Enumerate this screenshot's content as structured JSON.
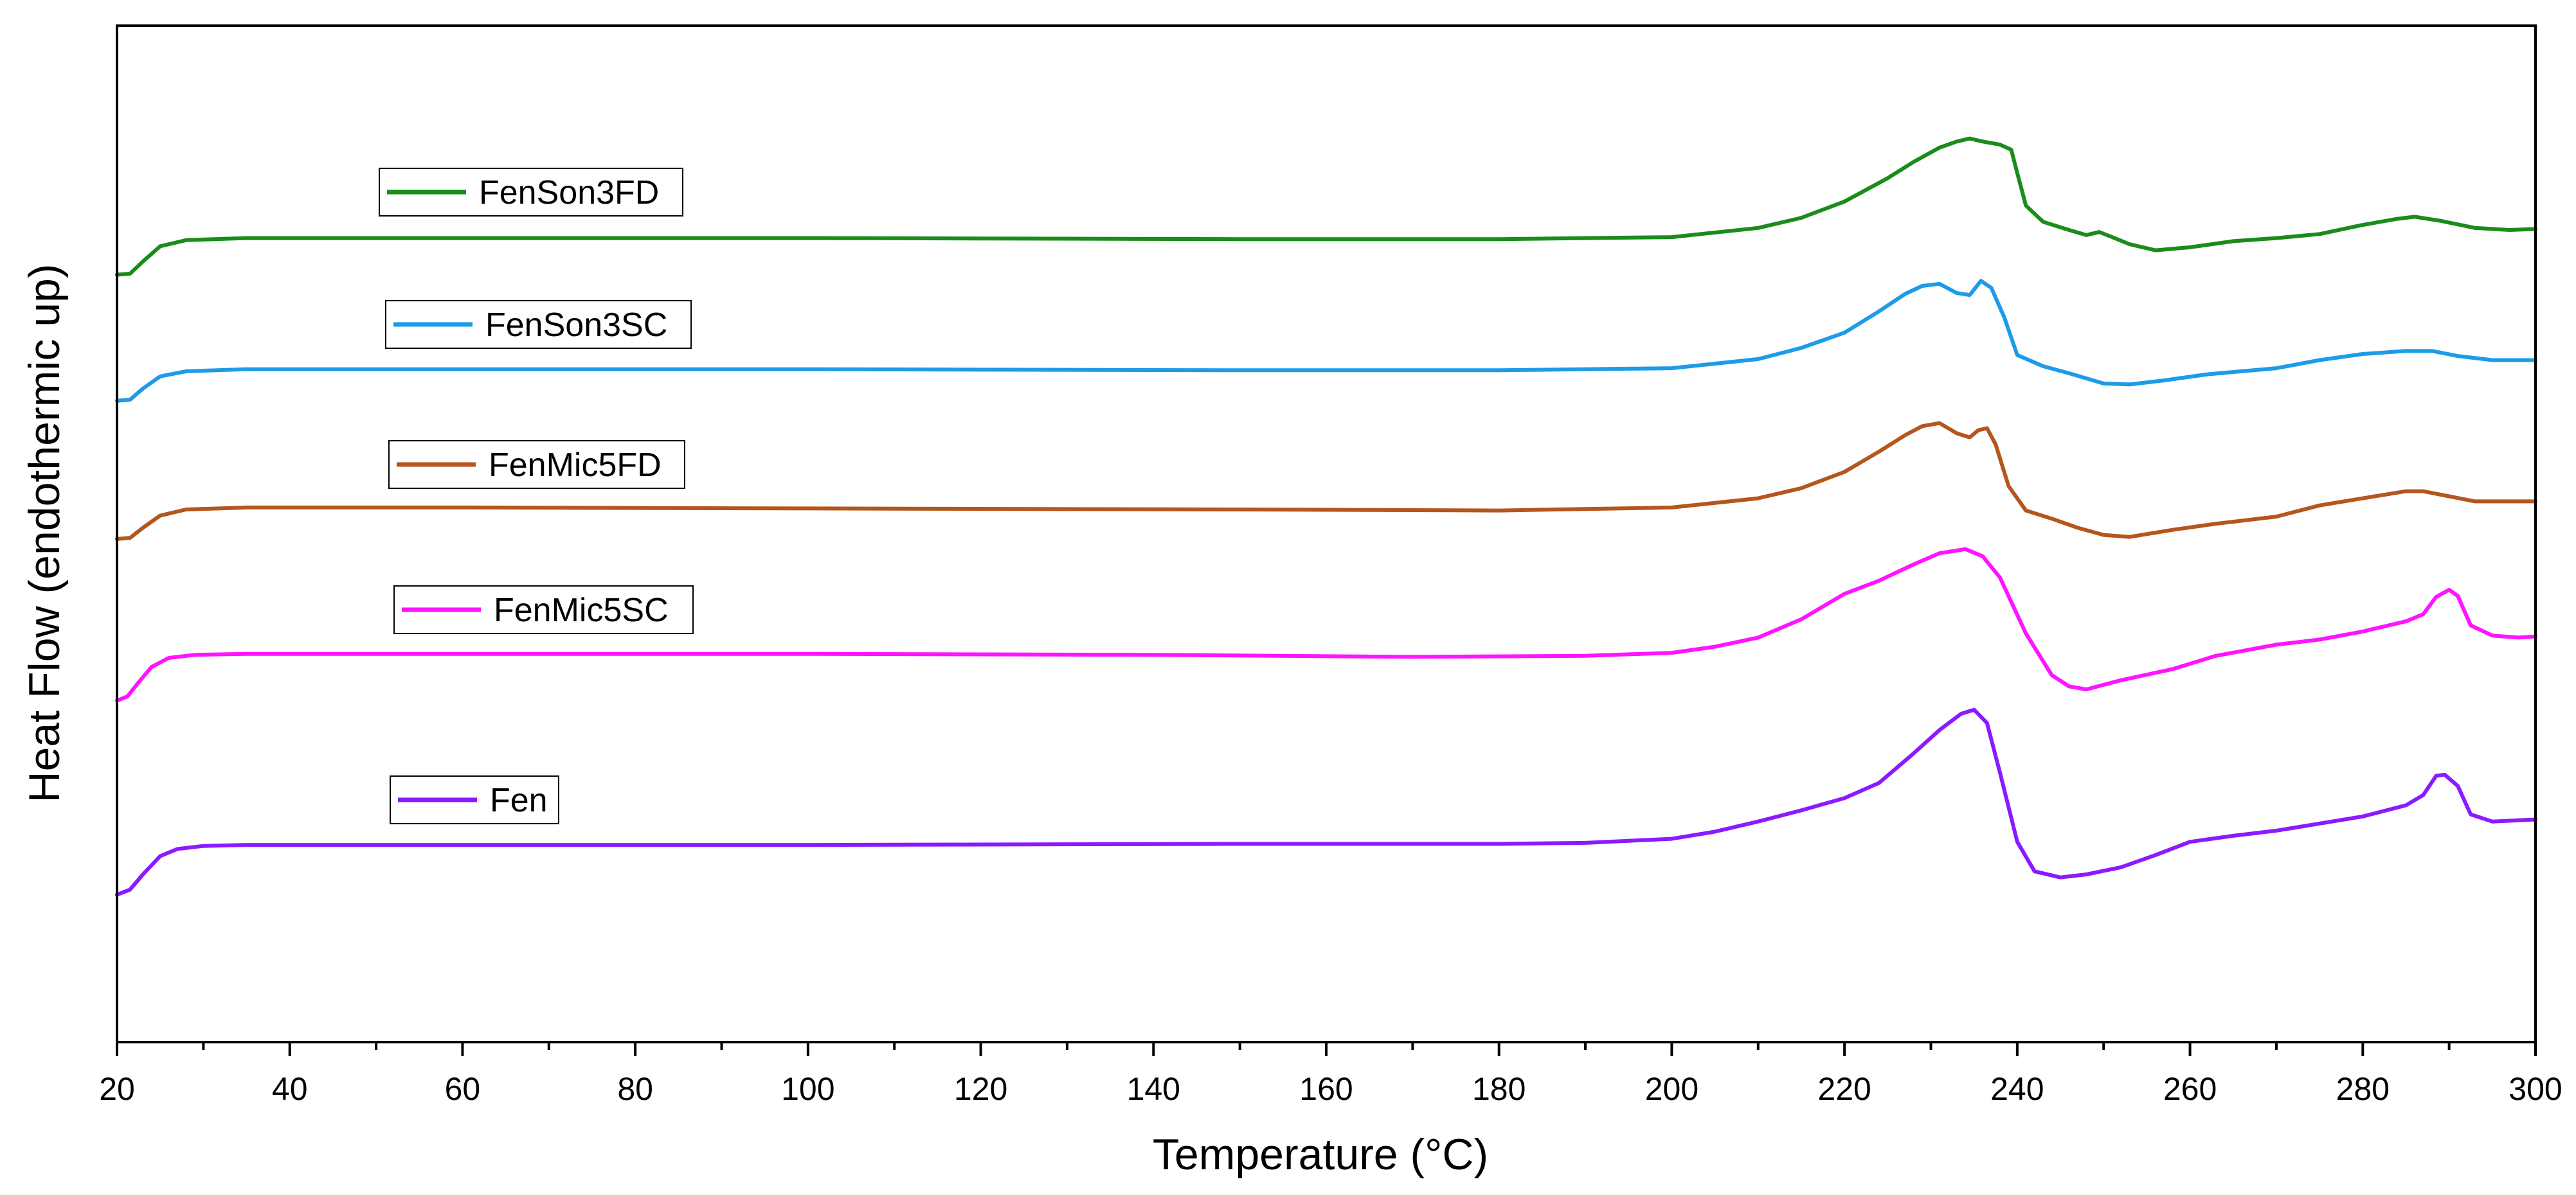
{
  "chart_data": {
    "type": "line",
    "title": "",
    "xlabel": "Temperature (°C)",
    "ylabel": "Heat Flow (endothermic up)",
    "xlim": [
      20,
      300
    ],
    "ylim": [
      0,
      1
    ],
    "x_ticks": [
      20,
      40,
      60,
      80,
      100,
      120,
      140,
      160,
      180,
      200,
      220,
      240,
      260,
      280,
      300
    ],
    "y_ticks_shown": false,
    "grid": false,
    "series": [
      {
        "name": "FenSon3FD",
        "color": "#1a8c1a",
        "points": [
          [
            20,
            0.755
          ],
          [
            21.5,
            0.756
          ],
          [
            23,
            0.768
          ],
          [
            25,
            0.783
          ],
          [
            28,
            0.789
          ],
          [
            35,
            0.791
          ],
          [
            60,
            0.791
          ],
          [
            100,
            0.791
          ],
          [
            150,
            0.79
          ],
          [
            180,
            0.79
          ],
          [
            200,
            0.792
          ],
          [
            210,
            0.801
          ],
          [
            215,
            0.811
          ],
          [
            220,
            0.827
          ],
          [
            225,
            0.85
          ],
          [
            228,
            0.866
          ],
          [
            231,
            0.88
          ],
          [
            233,
            0.886
          ],
          [
            234.5,
            0.889
          ],
          [
            236,
            0.886
          ],
          [
            238,
            0.883
          ],
          [
            239.3,
            0.878
          ],
          [
            240,
            0.855
          ],
          [
            241,
            0.823
          ],
          [
            243,
            0.807
          ],
          [
            246,
            0.799
          ],
          [
            248,
            0.794
          ],
          [
            249.5,
            0.797
          ],
          [
            251,
            0.792
          ],
          [
            253,
            0.785
          ],
          [
            256,
            0.779
          ],
          [
            260,
            0.782
          ],
          [
            265,
            0.788
          ],
          [
            270,
            0.791
          ],
          [
            275,
            0.795
          ],
          [
            280,
            0.804
          ],
          [
            284,
            0.81
          ],
          [
            286,
            0.812
          ],
          [
            289,
            0.808
          ],
          [
            293,
            0.801
          ],
          [
            297,
            0.799
          ],
          [
            300,
            0.8
          ]
        ]
      },
      {
        "name": "FenSon3SC",
        "color": "#1e9be8",
        "points": [
          [
            20,
            0.631
          ],
          [
            21.5,
            0.632
          ],
          [
            23,
            0.643
          ],
          [
            25,
            0.655
          ],
          [
            28,
            0.66
          ],
          [
            35,
            0.662
          ],
          [
            60,
            0.662
          ],
          [
            100,
            0.662
          ],
          [
            150,
            0.661
          ],
          [
            180,
            0.661
          ],
          [
            200,
            0.663
          ],
          [
            210,
            0.672
          ],
          [
            215,
            0.683
          ],
          [
            220,
            0.698
          ],
          [
            224,
            0.719
          ],
          [
            227,
            0.736
          ],
          [
            229,
            0.744
          ],
          [
            231,
            0.746
          ],
          [
            233,
            0.737
          ],
          [
            234.5,
            0.735
          ],
          [
            235.8,
            0.749
          ],
          [
            237,
            0.742
          ],
          [
            238.5,
            0.713
          ],
          [
            240,
            0.676
          ],
          [
            243,
            0.665
          ],
          [
            246,
            0.658
          ],
          [
            250,
            0.648
          ],
          [
            253,
            0.647
          ],
          [
            257,
            0.651
          ],
          [
            262,
            0.657
          ],
          [
            270,
            0.663
          ],
          [
            275,
            0.671
          ],
          [
            280,
            0.677
          ],
          [
            285,
            0.68
          ],
          [
            288,
            0.68
          ],
          [
            291,
            0.675
          ],
          [
            295,
            0.671
          ],
          [
            300,
            0.671
          ]
        ]
      },
      {
        "name": "FenMic5FD",
        "color": "#b4561e",
        "points": [
          [
            20,
            0.495
          ],
          [
            21.5,
            0.496
          ],
          [
            23,
            0.506
          ],
          [
            25,
            0.518
          ],
          [
            28,
            0.524
          ],
          [
            35,
            0.526
          ],
          [
            60,
            0.526
          ],
          [
            100,
            0.525
          ],
          [
            150,
            0.524
          ],
          [
            180,
            0.523
          ],
          [
            200,
            0.526
          ],
          [
            210,
            0.535
          ],
          [
            215,
            0.545
          ],
          [
            220,
            0.561
          ],
          [
            224,
            0.581
          ],
          [
            227,
            0.597
          ],
          [
            229,
            0.606
          ],
          [
            231,
            0.609
          ],
          [
            233,
            0.599
          ],
          [
            234.5,
            0.595
          ],
          [
            235.5,
            0.602
          ],
          [
            236.5,
            0.604
          ],
          [
            237.5,
            0.588
          ],
          [
            239,
            0.547
          ],
          [
            241,
            0.523
          ],
          [
            244,
            0.515
          ],
          [
            247,
            0.506
          ],
          [
            250,
            0.499
          ],
          [
            253,
            0.497
          ],
          [
            258,
            0.504
          ],
          [
            263,
            0.51
          ],
          [
            270,
            0.517
          ],
          [
            275,
            0.528
          ],
          [
            280,
            0.535
          ],
          [
            285,
            0.542
          ],
          [
            287,
            0.542
          ],
          [
            290,
            0.537
          ],
          [
            293,
            0.532
          ],
          [
            297,
            0.532
          ],
          [
            300,
            0.532
          ]
        ]
      },
      {
        "name": "FenMic5SC",
        "color": "#ff14ff",
        "points": [
          [
            20,
            0.336
          ],
          [
            21.2,
            0.34
          ],
          [
            22.5,
            0.354
          ],
          [
            24,
            0.369
          ],
          [
            26,
            0.378
          ],
          [
            29,
            0.381
          ],
          [
            35,
            0.382
          ],
          [
            60,
            0.382
          ],
          [
            100,
            0.382
          ],
          [
            140,
            0.381
          ],
          [
            170,
            0.379
          ],
          [
            190,
            0.38
          ],
          [
            200,
            0.383
          ],
          [
            205,
            0.389
          ],
          [
            210,
            0.398
          ],
          [
            215,
            0.416
          ],
          [
            220,
            0.441
          ],
          [
            224,
            0.454
          ],
          [
            228,
            0.47
          ],
          [
            231,
            0.481
          ],
          [
            234,
            0.485
          ],
          [
            236,
            0.478
          ],
          [
            238,
            0.457
          ],
          [
            241,
            0.402
          ],
          [
            244,
            0.361
          ],
          [
            246,
            0.35
          ],
          [
            248,
            0.347
          ],
          [
            252,
            0.356
          ],
          [
            258,
            0.367
          ],
          [
            263,
            0.38
          ],
          [
            270,
            0.391
          ],
          [
            275,
            0.396
          ],
          [
            280,
            0.404
          ],
          [
            285,
            0.414
          ],
          [
            287,
            0.421
          ],
          [
            288.5,
            0.438
          ],
          [
            290,
            0.445
          ],
          [
            291,
            0.439
          ],
          [
            292.5,
            0.41
          ],
          [
            295,
            0.4
          ],
          [
            298,
            0.398
          ],
          [
            300,
            0.399
          ]
        ]
      },
      {
        "name": "Fen",
        "color": "#8c1aff",
        "points": [
          [
            20,
            0.145
          ],
          [
            21.5,
            0.15
          ],
          [
            23,
            0.165
          ],
          [
            25,
            0.183
          ],
          [
            27,
            0.19
          ],
          [
            30,
            0.193
          ],
          [
            35,
            0.194
          ],
          [
            60,
            0.194
          ],
          [
            100,
            0.194
          ],
          [
            150,
            0.195
          ],
          [
            180,
            0.195
          ],
          [
            190,
            0.196
          ],
          [
            200,
            0.2
          ],
          [
            205,
            0.207
          ],
          [
            210,
            0.217
          ],
          [
            215,
            0.228
          ],
          [
            220,
            0.24
          ],
          [
            224,
            0.255
          ],
          [
            228,
            0.284
          ],
          [
            231,
            0.307
          ],
          [
            233.5,
            0.323
          ],
          [
            235,
            0.327
          ],
          [
            236.5,
            0.314
          ],
          [
            238,
            0.265
          ],
          [
            240,
            0.197
          ],
          [
            242,
            0.168
          ],
          [
            245,
            0.162
          ],
          [
            248,
            0.165
          ],
          [
            252,
            0.172
          ],
          [
            256,
            0.184
          ],
          [
            260,
            0.197
          ],
          [
            265,
            0.203
          ],
          [
            270,
            0.208
          ],
          [
            280,
            0.222
          ],
          [
            285,
            0.233
          ],
          [
            287,
            0.243
          ],
          [
            288.5,
            0.262
          ],
          [
            289.5,
            0.263
          ],
          [
            291,
            0.252
          ],
          [
            292.5,
            0.224
          ],
          [
            295,
            0.217
          ],
          [
            300,
            0.219
          ]
        ]
      }
    ]
  }
}
